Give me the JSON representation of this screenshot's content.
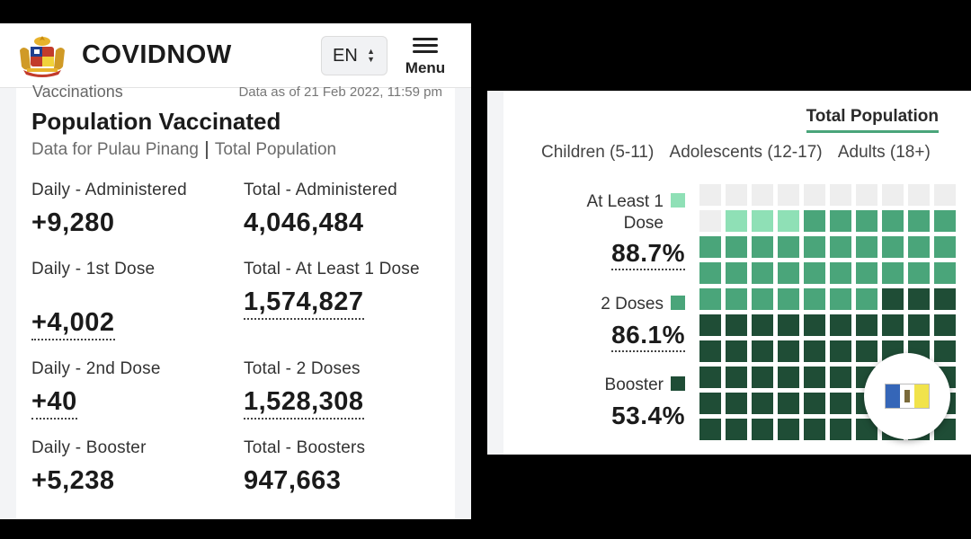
{
  "header": {
    "brand": "COVIDNOW",
    "language": "EN",
    "menu_label": "Menu"
  },
  "card": {
    "section_label": "Vaccinations",
    "data_as_of": "Data as of 21 Feb 2022, 11:59 pm",
    "title": "Population Vaccinated",
    "subtitle_state": "Data for Pulau Pinang",
    "subtitle_scope": "Total Population"
  },
  "stats": {
    "daily_administered": {
      "label": "Daily - Administered",
      "value": "+9,280"
    },
    "total_administered": {
      "label": "Total - Administered",
      "value": "4,046,484"
    },
    "daily_first": {
      "label": "Daily - 1st Dose",
      "value": "+4,002"
    },
    "total_at_least_one": {
      "label": "Total - At Least 1 Dose",
      "value": "1,574,827"
    },
    "daily_second": {
      "label": "Daily - 2nd Dose",
      "value": "+40"
    },
    "total_two": {
      "label": "Total - 2 Doses",
      "value": "1,528,308"
    },
    "daily_booster": {
      "label": "Daily - Booster",
      "value": "+5,238"
    },
    "total_boosters": {
      "label": "Total - Boosters",
      "value": "947,663"
    }
  },
  "right": {
    "active_tab": "Total Population",
    "groups": [
      "Children (5-11)",
      "Adolescents (12-17)",
      "Adults (18+)"
    ],
    "legend": {
      "at_least_one": {
        "label_line1": "At Least 1",
        "label_line2": "Dose",
        "value": "88.7%",
        "color": "#8fe0b6"
      },
      "two_doses": {
        "label": "2 Doses",
        "value": "86.1%",
        "color": "#4aa57a"
      },
      "booster": {
        "label": "Booster",
        "value": "53.4%",
        "color": "#1f4d36"
      }
    }
  },
  "waffle": {
    "at_least_one_pct": 88.7,
    "two_doses_pct": 86.1,
    "booster_pct": 53.4,
    "colors": {
      "empty": "#eeeeee",
      "at_least_one": "#8fe0b6",
      "two_doses": "#4aa57a",
      "booster": "#1f4d36"
    }
  },
  "icons": {
    "crest": "malaysia-coat-of-arms-icon",
    "menu": "hamburger-icon",
    "select_arrows": "up-down-arrows-icon",
    "flag": "penang-flag-icon"
  }
}
